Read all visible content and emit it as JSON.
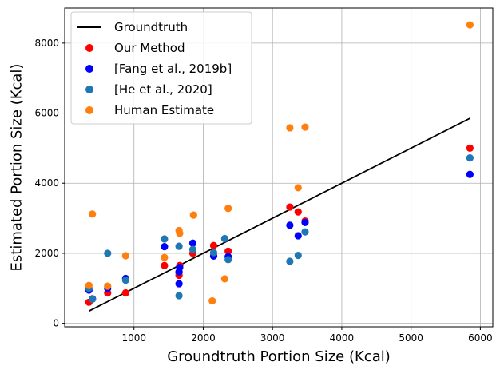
{
  "chart_data": {
    "type": "scatter",
    "title": "",
    "xlabel": "Groundtruth Portion Size (Kcal)",
    "ylabel": "Estimated Portion Size (Kcal)",
    "xlim": [
      0,
      6180
    ],
    "ylim": [
      -100,
      9000
    ],
    "xticks": [
      1000,
      2000,
      3000,
      4000,
      5000,
      6000
    ],
    "yticks": [
      0,
      2000,
      4000,
      6000,
      8000
    ],
    "grid": true,
    "legend_position": "top-left",
    "line": {
      "name": "Groundtruth",
      "color": "#000000",
      "x": [
        350,
        5850
      ],
      "y": [
        350,
        5850
      ]
    },
    "series": [
      {
        "name": "Our Method",
        "color": "#ff0000",
        "x": [
          350,
          400,
          620,
          880,
          1440,
          1650,
          1650,
          1660,
          1850,
          2150,
          2150,
          2360,
          3250,
          3370,
          3470,
          5850
        ],
        "y": [
          600,
          700,
          870,
          870,
          1650,
          1370,
          1440,
          1650,
          2000,
          2220,
          1930,
          2060,
          3320,
          3180,
          2920,
          5000
        ]
      },
      {
        "name": "[Fang et al., 2019b]",
        "color": "#0000ff",
        "x": [
          350,
          400,
          620,
          880,
          1440,
          1650,
          1650,
          1660,
          1850,
          2150,
          2360,
          3250,
          3370,
          3470,
          5850
        ],
        "y": [
          950,
          700,
          1000,
          1280,
          2190,
          1130,
          1470,
          1600,
          2290,
          1920,
          1900,
          2800,
          2500,
          2880,
          4250
        ]
      },
      {
        "name": "[He et al., 2020]",
        "color": "#1f77b4",
        "x": [
          350,
          400,
          620,
          880,
          1440,
          1650,
          1650,
          1850,
          2150,
          2310,
          2360,
          3250,
          3370,
          3470,
          5850
        ],
        "y": [
          1000,
          690,
          2000,
          1230,
          2410,
          790,
          2200,
          2110,
          2020,
          2420,
          1820,
          1770,
          1940,
          2610,
          4720
        ]
      },
      {
        "name": "Human Estimate",
        "color": "#ff7f0e",
        "x": [
          350,
          400,
          620,
          880,
          1440,
          1650,
          1660,
          1860,
          2130,
          2310,
          2360,
          3250,
          3370,
          3470,
          5850
        ],
        "y": [
          1080,
          3120,
          1060,
          1930,
          1880,
          2650,
          2570,
          3090,
          640,
          1270,
          3280,
          5580,
          3870,
          5600,
          8520
        ]
      }
    ]
  }
}
